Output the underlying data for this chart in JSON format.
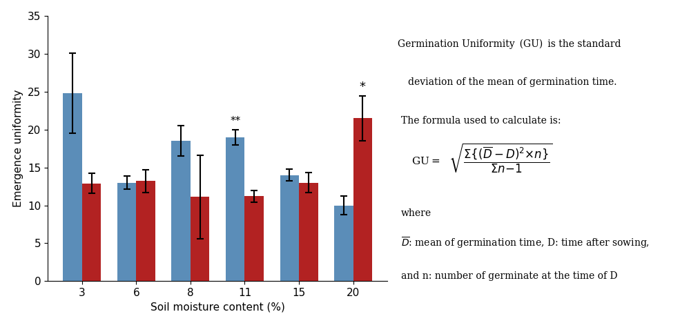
{
  "categories": [
    3,
    6,
    8,
    11,
    15,
    20
  ],
  "blue_values": [
    24.8,
    13.0,
    18.5,
    19.0,
    14.0,
    10.0
  ],
  "red_values": [
    12.9,
    13.2,
    11.1,
    11.2,
    13.0,
    21.5
  ],
  "blue_errors": [
    5.3,
    0.9,
    2.0,
    1.0,
    0.8,
    1.2
  ],
  "red_errors": [
    1.3,
    1.5,
    5.5,
    0.8,
    1.3,
    3.0
  ],
  "blue_color": "#5B8DB8",
  "red_color": "#B22222",
  "bar_width": 0.35,
  "ylabel": "Emergence uniformity",
  "xlabel": "Soil moisture content (%)",
  "ylim": [
    0,
    35
  ],
  "yticks": [
    0,
    5,
    10,
    15,
    20,
    25,
    30,
    35
  ]
}
